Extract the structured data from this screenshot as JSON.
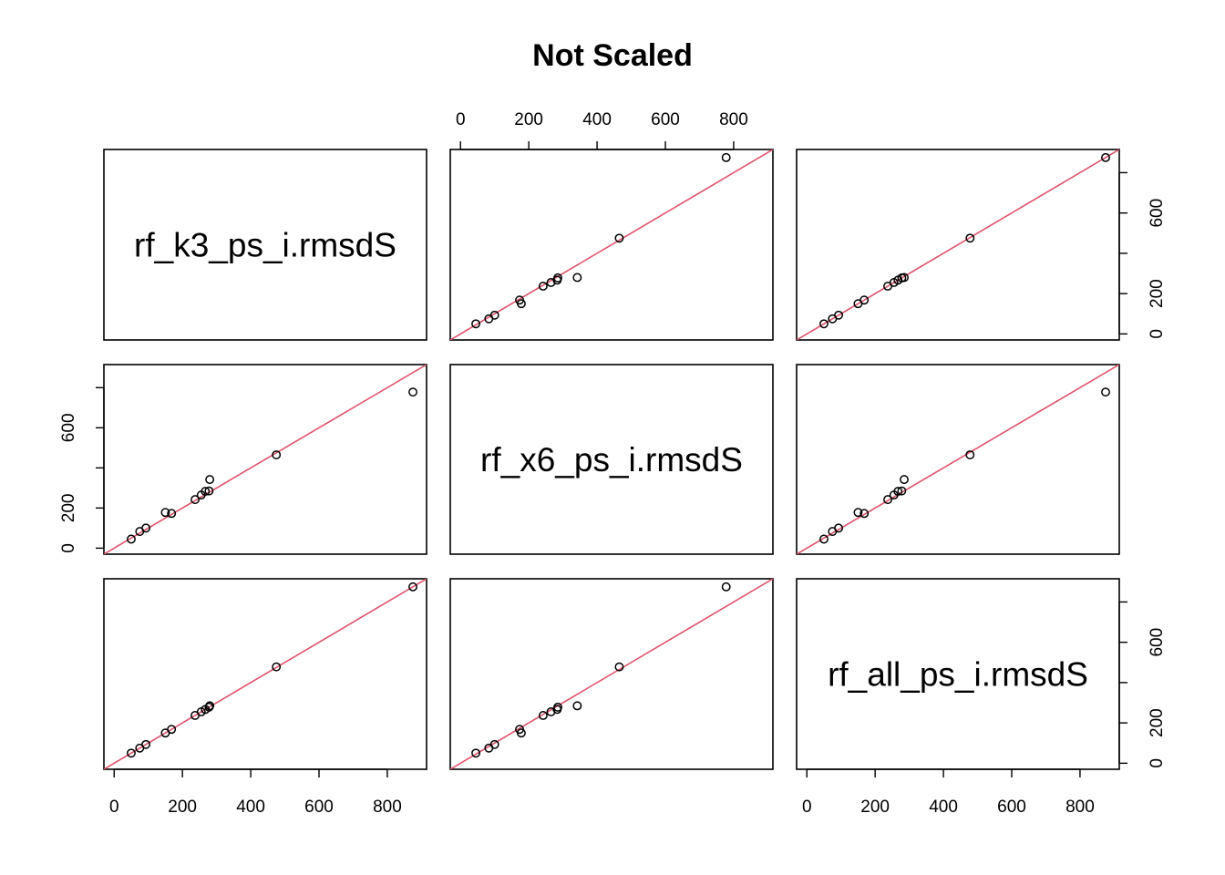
{
  "chart_data": {
    "type": "scatter",
    "title": "Not Scaled",
    "variables": [
      "rf_k3_ps_i.rmsdS",
      "rf_x6_ps_i.rmsdS",
      "rf_all_ps_i.rmsdS"
    ],
    "axis_range": [
      -30,
      915
    ],
    "ticks": [
      0,
      200,
      400,
      600,
      800
    ],
    "tick_labels": [
      "0",
      "200",
      "400",
      "600",
      "800"
    ],
    "reference_line": {
      "intercept": 0,
      "slope": 1,
      "color": "#DF536B"
    },
    "layout": "pairs-matrix-3x3",
    "values": {
      "rf_k3_ps_i.rmsdS": [
        50,
        75,
        93,
        150,
        168,
        237,
        255,
        267,
        278,
        280,
        475,
        875
      ],
      "rf_x6_ps_i.rmsdS": [
        45,
        83,
        100,
        178,
        173,
        242,
        265,
        283,
        285,
        342,
        465,
        778
      ],
      "rf_all_ps_i.rmsdS": [
        50,
        75,
        93,
        150,
        168,
        237,
        255,
        267,
        278,
        285,
        478,
        875
      ]
    }
  }
}
